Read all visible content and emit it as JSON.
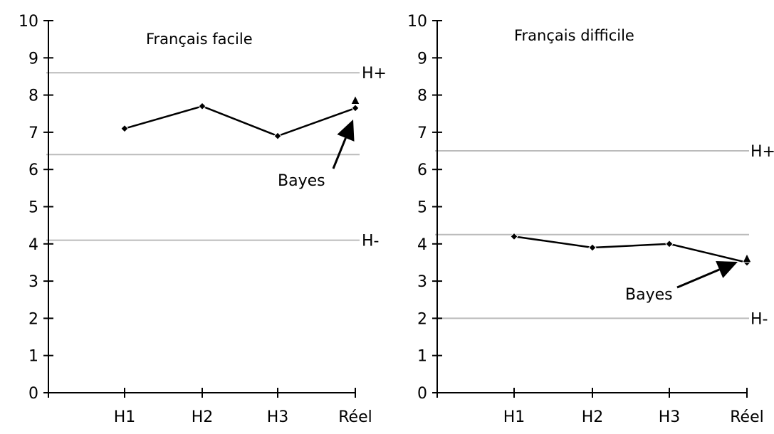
{
  "chart_data": [
    {
      "type": "line",
      "title": "Français facile",
      "categories": [
        "H1",
        "H2",
        "H3",
        "Réel"
      ],
      "series": [
        {
          "values": [
            7.1,
            7.7,
            6.9,
            7.65
          ],
          "marker": "diamond"
        }
      ],
      "bayes_point": {
        "category": "Réel",
        "value": 7.85,
        "marker": "triangle"
      },
      "reference_lines": [
        {
          "value": 8.6,
          "label": "H+"
        },
        {
          "value": 6.4,
          "label": ""
        },
        {
          "value": 4.1,
          "label": "H-"
        }
      ],
      "annotation": {
        "text": "Bayes",
        "points_to": "Réel"
      },
      "yticks": [
        0,
        1,
        2,
        3,
        4,
        5,
        6,
        7,
        8,
        9,
        10
      ],
      "ylim": [
        0,
        10
      ],
      "xlabel": "",
      "ylabel": "",
      "grid": false,
      "colors": {
        "series": "#000000",
        "reference": "#bbbbbb"
      }
    },
    {
      "type": "line",
      "title": "Français difficile",
      "categories": [
        "H1",
        "H2",
        "H3",
        "Réel"
      ],
      "series": [
        {
          "values": [
            4.2,
            3.9,
            4.0,
            3.5
          ],
          "marker": "diamond"
        }
      ],
      "bayes_point": {
        "category": "Réel",
        "value": 3.6,
        "marker": "triangle"
      },
      "reference_lines": [
        {
          "value": 6.5,
          "label": "H+"
        },
        {
          "value": 4.25,
          "label": ""
        },
        {
          "value": 2.0,
          "label": "H-"
        }
      ],
      "annotation": {
        "text": "Bayes",
        "points_to": "Réel"
      },
      "yticks": [
        0,
        1,
        2,
        3,
        4,
        5,
        6,
        7,
        8,
        9,
        10
      ],
      "ylim": [
        0,
        10
      ],
      "xlabel": "",
      "ylabel": "",
      "grid": false,
      "colors": {
        "series": "#000000",
        "reference": "#bbbbbb"
      }
    }
  ]
}
